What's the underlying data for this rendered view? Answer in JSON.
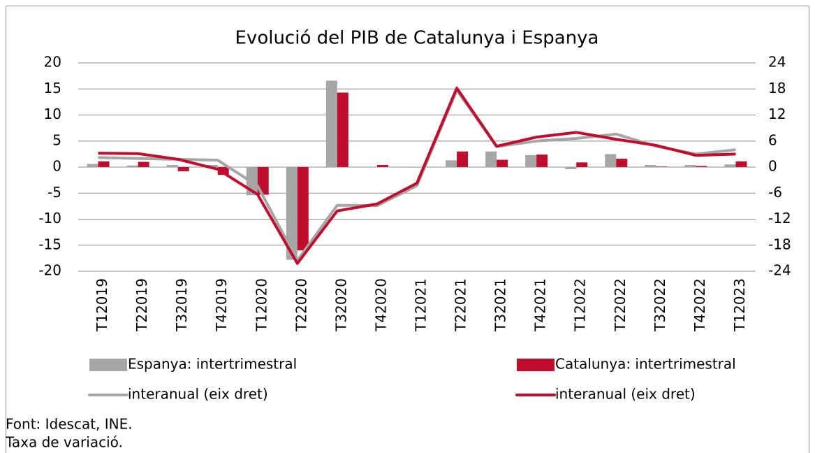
{
  "chart_data": {
    "type": "bar",
    "title": "Evolució del PIB de Catalunya i Espanya",
    "categories": [
      "T12019",
      "T22019",
      "T32019",
      "T42019",
      "T12020",
      "T22020",
      "T32020",
      "T42020",
      "T12021",
      "T22021",
      "T32021",
      "T42021",
      "T12022",
      "T22022",
      "T32022",
      "T42022",
      "T12023"
    ],
    "series": [
      {
        "name": "Espanya: intertrimestral",
        "type": "bar",
        "color": "#a6a6a6",
        "values": [
          0.6,
          0.3,
          0.4,
          0.4,
          -5.4,
          -17.8,
          16.6,
          0.0,
          -0.1,
          1.3,
          3.0,
          2.3,
          -0.4,
          2.5,
          0.4,
          0.4,
          0.5
        ]
      },
      {
        "name": "Catalunya: intertrimestral",
        "type": "bar",
        "color": "#c00d2e",
        "values": [
          1.1,
          1.0,
          -0.8,
          -1.5,
          -5.3,
          -16.0,
          14.3,
          0.4,
          0.0,
          3.0,
          1.4,
          2.4,
          0.9,
          1.6,
          0.1,
          0.2,
          1.1
        ]
      },
      {
        "name": "interanual (eix dret)",
        "type": "line",
        "axis": "y2",
        "color": "#a6a6a6",
        "values": [
          2.2,
          2.0,
          1.8,
          1.6,
          -4.3,
          -21.5,
          -8.8,
          -8.9,
          -4.3,
          17.7,
          4.7,
          6.0,
          6.6,
          7.6,
          4.8,
          3.0,
          4.0
        ]
      },
      {
        "name": "interanual (eix dret)",
        "type": "line",
        "axis": "y2",
        "color": "#c00d2e",
        "values": [
          3.2,
          3.1,
          1.8,
          -0.5,
          -6.3,
          -22.2,
          -10.1,
          -8.5,
          -3.7,
          18.2,
          4.8,
          6.9,
          8.0,
          6.4,
          5.0,
          2.7,
          3.0
        ]
      }
    ],
    "ylim": [
      -20,
      20
    ],
    "yticks": [
      -20,
      -15,
      -10,
      -5,
      0,
      5,
      10,
      15,
      20
    ],
    "y2lim": [
      -24,
      24
    ],
    "y2ticks": [
      -24,
      -18,
      -12,
      -6,
      0,
      6,
      12,
      18,
      24
    ],
    "grid": true,
    "notes": [
      "Font: Idescat, INE.",
      "Taxa de variació."
    ]
  }
}
